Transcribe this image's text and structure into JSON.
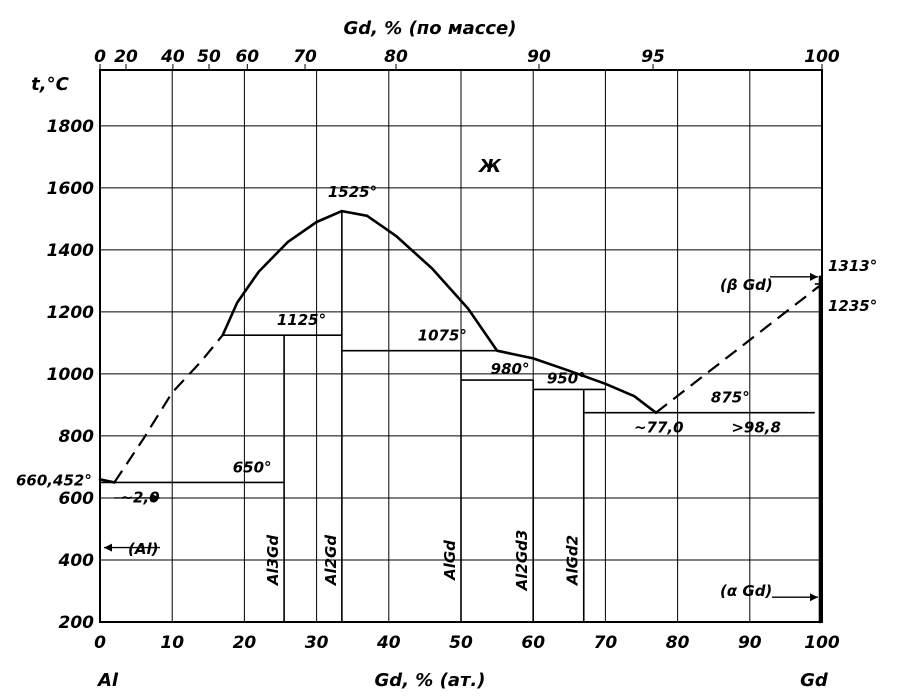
{
  "chart_data": {
    "type": "phase-diagram",
    "top_axis_title": "Gd, % (по массе)",
    "top_ticks": [
      {
        "label": "0",
        "at": 0
      },
      {
        "label": "20",
        "at": 3.6
      },
      {
        "label": "40",
        "at": 10.1
      },
      {
        "label": "50",
        "at": 15.1
      },
      {
        "label": "60",
        "at": 20.4
      },
      {
        "label": "70",
        "at": 28.4
      },
      {
        "label": "80",
        "at": 41.0
      },
      {
        "label": "90",
        "at": 60.8
      },
      {
        "label": "95",
        "at": 76.6
      },
      {
        "label": "100",
        "at": 100
      }
    ],
    "bottom_axis_title": "Gd, % (ат.)",
    "bottom_ticks": [
      "0",
      "10",
      "20",
      "30",
      "40",
      "50",
      "60",
      "70",
      "80",
      "90",
      "100"
    ],
    "xlim": [
      0,
      100
    ],
    "y_axis_title": "t,°C",
    "y_ticks": [
      "200",
      "400",
      "600",
      "800",
      "1000",
      "1200",
      "1400",
      "1600",
      "1800"
    ],
    "ylim": [
      200,
      1980
    ],
    "left_component": "Al",
    "right_component": "Gd",
    "region_labels": {
      "liquid": "Ж",
      "al_solid": "(Al)",
      "beta_gd": "(β Gd)",
      "alpha_gd": "(α Gd)"
    },
    "phases": [
      {
        "name": "Al3Gd",
        "x": 25.5
      },
      {
        "name": "Al2Gd",
        "x": 33.5
      },
      {
        "name": "AlGd",
        "x": 50
      },
      {
        "name": "Al2Gd3",
        "x": 60
      },
      {
        "name": "AlGd2",
        "x": 67
      }
    ],
    "temperature_labels": [
      {
        "text": "660,452°",
        "x": 0,
        "t": 660
      },
      {
        "text": "650°",
        "x": 17,
        "t": 650
      },
      {
        "text": "1125°",
        "x": 22,
        "t": 1125
      },
      {
        "text": "1525°",
        "x": 33.5,
        "t": 1525
      },
      {
        "text": "1075°",
        "x": 44,
        "t": 1075
      },
      {
        "text": "980°",
        "x": 53,
        "t": 980
      },
      {
        "text": "950°",
        "x": 63,
        "t": 950
      },
      {
        "text": "875°",
        "x": 86,
        "t": 875
      },
      {
        "text": "1313°",
        "x": 100,
        "t": 1313
      },
      {
        "text": "1235°",
        "x": 100,
        "t": 1235
      }
    ],
    "composition_labels": [
      {
        "text": "~2,0",
        "x": 2,
        "t": 650
      },
      {
        "text": "~77,0",
        "x": 77,
        "t": 875
      },
      {
        "text": ">98,8",
        "x": 98.8,
        "t": 875
      }
    ],
    "liquidus_solid_segments": [
      [
        [
          17,
          1125
        ],
        [
          19,
          1230
        ],
        [
          22,
          1330
        ],
        [
          26,
          1425
        ],
        [
          30,
          1490
        ],
        [
          33.5,
          1525
        ],
        [
          37,
          1510
        ],
        [
          41,
          1445
        ],
        [
          46,
          1340
        ],
        [
          51,
          1210
        ],
        [
          55,
          1075
        ],
        [
          60,
          1050
        ],
        [
          65,
          1010
        ],
        [
          70,
          968
        ],
        [
          74,
          928
        ],
        [
          77,
          875
        ]
      ]
    ],
    "liquidus_dashed_segments": [
      [
        [
          2,
          650
        ],
        [
          6,
          790
        ],
        [
          10,
          940
        ],
        [
          14,
          1040
        ],
        [
          17,
          1125
        ]
      ],
      [
        [
          77,
          875
        ],
        [
          100,
          1290
        ]
      ]
    ],
    "horizontal_lines": [
      {
        "t": 650,
        "x1": 0,
        "x2": 25.5
      },
      {
        "t": 1125,
        "x1": 17,
        "x2": 33.5
      },
      {
        "t": 1075,
        "x1": 33.5,
        "x2": 55
      },
      {
        "t": 980,
        "x1": 50,
        "x2": 60
      },
      {
        "t": 950,
        "x1": 60,
        "x2": 70
      },
      {
        "t": 875,
        "x1": 67,
        "x2": 99
      },
      {
        "t": 1290,
        "x1": 99,
        "x2": 100
      }
    ]
  }
}
